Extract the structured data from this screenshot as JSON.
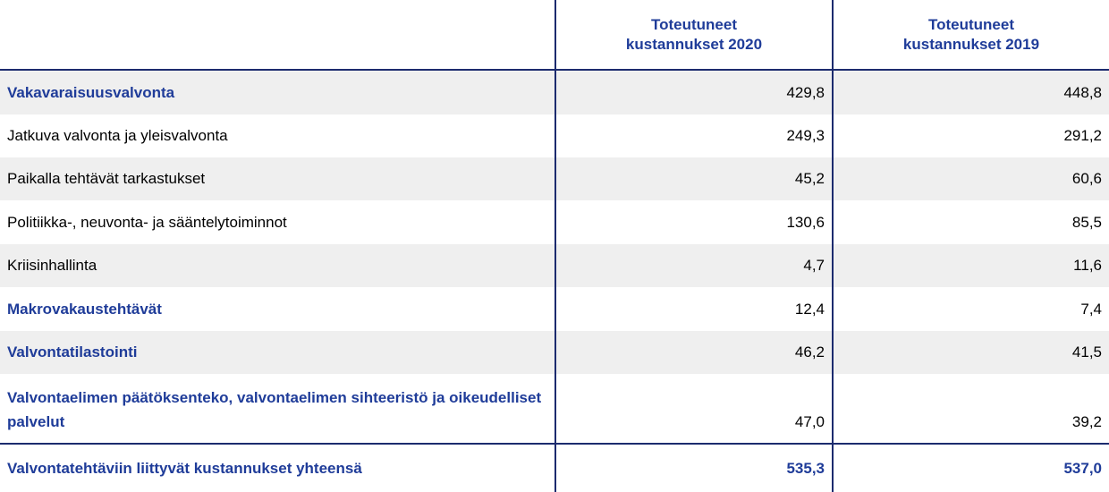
{
  "table": {
    "columns": [
      "",
      "Toteutuneet kustannukset 2020",
      "Toteutuneet kustannukset 2019"
    ],
    "rows": [
      [
        "Vakavaraisuusvalvonta",
        "429,8",
        "448,8"
      ],
      [
        "Jatkuva valvonta ja yleisvalvonta",
        "249,3",
        "291,2"
      ],
      [
        "Paikalla tehtävät tarkastukset",
        "45,2",
        "60,6"
      ],
      [
        "Politiikka-, neuvonta- ja sääntelytoiminnot",
        "130,6",
        "85,5"
      ],
      [
        "Kriisinhallinta",
        "4,7",
        "11,6"
      ],
      [
        "Makrovakaustehtävät",
        "12,4",
        "7,4"
      ],
      [
        "Valvontatilastointi",
        "46,2",
        "41,5"
      ],
      [
        "Valvontaelimen päätöksenteko, valvontaelimen sihteeristö ja oikeudelliset palvelut",
        "47,0",
        "39,2"
      ],
      [
        "Valvontatehtäviin liittyvät kustannukset yhteensä",
        "535,3",
        "537,0"
      ]
    ]
  }
}
